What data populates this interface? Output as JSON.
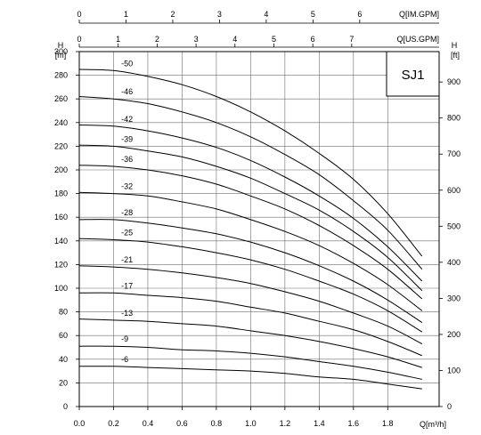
{
  "chart_data": {
    "type": "line",
    "model": "SJ1",
    "x": {
      "unit_label": "Q[m³/h]",
      "ticks": [
        0.0,
        0.2,
        0.4,
        0.6,
        0.8,
        1.0,
        1.2,
        1.4,
        1.6,
        1.8
      ],
      "tick_labels": [
        "0.0",
        "0.2",
        "0.4",
        "0.6",
        "0.8",
        "1.0",
        "1.2",
        "1.4",
        "1.6",
        "1.8"
      ],
      "range": [
        0,
        2.1
      ]
    },
    "y_left": {
      "symbol": "H",
      "unit": "[m]",
      "ticks": [
        0,
        20,
        40,
        60,
        80,
        100,
        120,
        140,
        160,
        180,
        200,
        220,
        240,
        260,
        280,
        300
      ],
      "range": [
        0,
        300
      ]
    },
    "y_right": {
      "symbol": "H",
      "unit": "[ft]",
      "ticks": [
        0,
        100,
        200,
        300,
        400,
        500,
        600,
        700,
        800,
        900
      ]
    },
    "top_us_gpm": {
      "unit_label": "Q[US.GPM]",
      "ticks": [
        0,
        1,
        2,
        3,
        4,
        5,
        6,
        7
      ]
    },
    "top_im_gpm": {
      "unit_label": "Q[IM.GPM]",
      "ticks": [
        0,
        1,
        2,
        3,
        4,
        5,
        6
      ]
    },
    "grid": true,
    "x_values": [
      0,
      0.2,
      0.4,
      0.6,
      0.8,
      1.0,
      1.2,
      1.4,
      1.6,
      1.8,
      2.0
    ],
    "series": [
      {
        "name": "-50",
        "values": [
          285,
          284,
          279,
          272,
          262,
          249,
          233,
          214,
          192,
          163,
          127
        ]
      },
      {
        "name": "-46",
        "values": [
          262,
          260,
          256,
          249,
          240,
          228,
          213,
          196,
          174,
          149,
          116
        ]
      },
      {
        "name": "-42",
        "values": [
          238,
          237,
          233,
          227,
          219,
          208,
          194,
          178,
          159,
          135,
          106
        ]
      },
      {
        "name": "-39",
        "values": [
          221,
          220,
          216,
          211,
          203,
          193,
          180,
          166,
          148,
          126,
          98
        ]
      },
      {
        "name": "-36",
        "values": [
          204,
          203,
          200,
          195,
          188,
          178,
          167,
          153,
          136,
          116,
          91
        ]
      },
      {
        "name": "-32",
        "values": [
          181,
          180,
          178,
          173,
          167,
          158,
          148,
          136,
          121,
          103,
          81
        ]
      },
      {
        "name": "-28",
        "values": [
          158,
          158,
          155,
          151,
          146,
          139,
          130,
          119,
          106,
          90,
          71
        ]
      },
      {
        "name": "-25",
        "values": [
          142,
          141,
          139,
          135,
          130,
          124,
          116,
          106,
          95,
          81,
          63
        ]
      },
      {
        "name": "-21",
        "values": [
          119,
          118,
          116,
          113,
          109,
          104,
          97,
          89,
          79,
          68,
          53
        ]
      },
      {
        "name": "-17",
        "values": [
          96,
          96,
          94,
          92,
          89,
          84,
          79,
          72,
          65,
          55,
          43
        ]
      },
      {
        "name": "-13",
        "values": [
          74,
          73,
          72,
          70,
          68,
          64,
          60,
          55,
          49,
          42,
          33
        ]
      },
      {
        "name": "-9",
        "values": [
          51,
          51,
          50,
          48,
          47,
          45,
          42,
          38,
          34,
          29,
          23
        ]
      },
      {
        "name": "-6",
        "values": [
          34,
          34,
          33,
          32,
          31,
          30,
          28,
          25,
          23,
          19,
          15
        ]
      }
    ]
  }
}
